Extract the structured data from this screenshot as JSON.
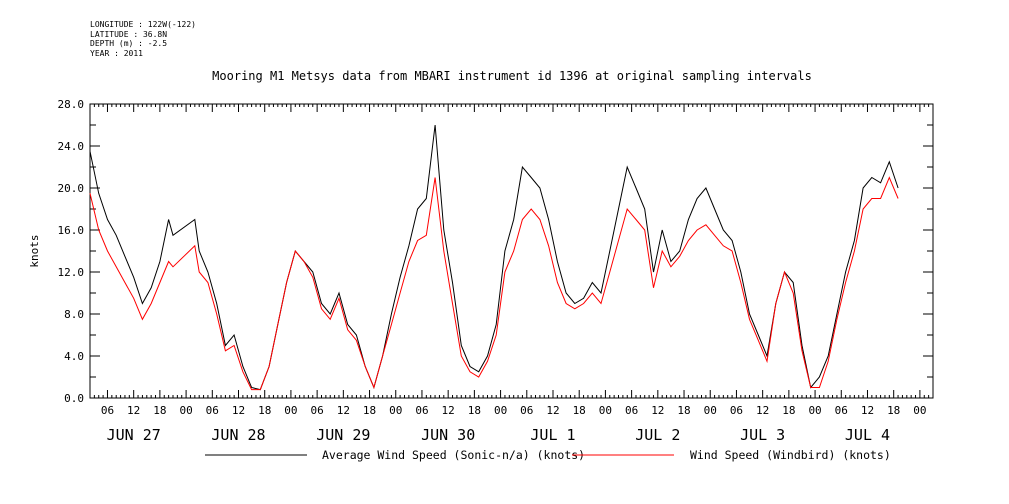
{
  "header": {
    "longitude": "LONGITUDE : 122W(-122)",
    "latitude": "LATITUDE : 36.8N",
    "depth": "DEPTH (m) : -2.5",
    "year": "YEAR : 2011"
  },
  "chart_data": {
    "type": "line",
    "title": "Mooring M1 Metsys data from MBARI instrument id 1396 at original sampling intervals",
    "ylabel": "knots",
    "xlabel": "",
    "ylim": [
      0,
      28
    ],
    "y_ticks": [
      "0.0",
      "4.0",
      "8.0",
      "12.0",
      "16.0",
      "20.0",
      "24.0",
      "28.0"
    ],
    "x_unit": "hours since 2011-06-27 00:00",
    "xlim": [
      2,
      195
    ],
    "x_hour_ticks": [
      "06",
      "12",
      "18",
      "00",
      "06",
      "12",
      "18",
      "00",
      "06",
      "12",
      "18",
      "00",
      "06",
      "12",
      "18",
      "00",
      "06",
      "12",
      "18",
      "00",
      "06",
      "12",
      "18",
      "00",
      "06",
      "12",
      "18",
      "00",
      "06",
      "12",
      "18",
      "00"
    ],
    "x_day_labels": [
      "JUN 27",
      "JUN 28",
      "JUN 29",
      "JUN 30",
      "JUL 1",
      "JUL 2",
      "JUL 3",
      "JUL 4"
    ],
    "grid": false,
    "legend_position": "bottom",
    "series": [
      {
        "name": "Average Wind Speed (Sonic-n/a) (knots)",
        "color": "#000000",
        "points": [
          [
            2,
            23.5
          ],
          [
            4,
            19.5
          ],
          [
            6,
            17
          ],
          [
            8,
            15.5
          ],
          [
            10,
            13.5
          ],
          [
            12,
            11.5
          ],
          [
            14,
            9
          ],
          [
            16,
            10.5
          ],
          [
            18,
            13
          ],
          [
            20,
            17
          ],
          [
            21,
            15.5
          ],
          [
            26,
            17
          ],
          [
            27,
            14
          ],
          [
            29,
            12
          ],
          [
            31,
            9
          ],
          [
            33,
            5
          ],
          [
            35,
            6
          ],
          [
            37,
            3
          ],
          [
            39,
            1
          ],
          [
            41,
            0.8
          ],
          [
            43,
            3
          ],
          [
            45,
            7
          ],
          [
            47,
            11
          ],
          [
            49,
            14
          ],
          [
            51,
            13
          ],
          [
            53,
            12
          ],
          [
            55,
            9
          ],
          [
            57,
            8
          ],
          [
            59,
            10
          ],
          [
            61,
            7
          ],
          [
            63,
            6
          ],
          [
            65,
            3
          ],
          [
            67,
            1
          ],
          [
            69,
            4
          ],
          [
            71,
            8
          ],
          [
            73,
            11.5
          ],
          [
            75,
            14.5
          ],
          [
            77,
            18
          ],
          [
            79,
            19
          ],
          [
            81,
            26
          ],
          [
            83,
            16
          ],
          [
            85,
            11
          ],
          [
            87,
            5
          ],
          [
            89,
            3
          ],
          [
            91,
            2.5
          ],
          [
            93,
            4
          ],
          [
            95,
            7
          ],
          [
            97,
            14
          ],
          [
            99,
            17
          ],
          [
            101,
            22
          ],
          [
            103,
            21
          ],
          [
            105,
            20
          ],
          [
            107,
            17
          ],
          [
            109,
            13
          ],
          [
            111,
            10
          ],
          [
            113,
            9
          ],
          [
            115,
            9.5
          ],
          [
            117,
            11
          ],
          [
            119,
            10
          ],
          [
            121,
            14
          ],
          [
            123,
            18
          ],
          [
            125,
            22
          ],
          [
            127,
            20
          ],
          [
            129,
            18
          ],
          [
            131,
            12
          ],
          [
            133,
            16
          ],
          [
            135,
            13
          ],
          [
            137,
            14
          ],
          [
            139,
            17
          ],
          [
            141,
            19
          ],
          [
            143,
            20
          ],
          [
            145,
            18
          ],
          [
            147,
            16
          ],
          [
            149,
            15
          ],
          [
            151,
            12
          ],
          [
            153,
            8
          ],
          [
            155,
            6
          ],
          [
            157,
            4
          ],
          [
            159,
            9
          ],
          [
            161,
            12
          ],
          [
            163,
            11
          ],
          [
            165,
            5
          ],
          [
            167,
            1
          ],
          [
            169,
            2
          ],
          [
            171,
            4
          ],
          [
            173,
            8
          ],
          [
            175,
            12
          ],
          [
            177,
            15
          ],
          [
            179,
            20
          ],
          [
            181,
            21
          ],
          [
            183,
            20.5
          ],
          [
            185,
            22.5
          ],
          [
            187,
            20
          ]
        ]
      },
      {
        "name": "Wind Speed (Windbird) (knots)",
        "color": "#ff0000",
        "points": [
          [
            2,
            19.5
          ],
          [
            4,
            16
          ],
          [
            6,
            14
          ],
          [
            8,
            12.5
          ],
          [
            10,
            11
          ],
          [
            12,
            9.5
          ],
          [
            14,
            7.5
          ],
          [
            16,
            9
          ],
          [
            18,
            11
          ],
          [
            20,
            13
          ],
          [
            21,
            12.5
          ],
          [
            26,
            14.5
          ],
          [
            27,
            12
          ],
          [
            29,
            11
          ],
          [
            31,
            8
          ],
          [
            33,
            4.5
          ],
          [
            35,
            5
          ],
          [
            37,
            2.5
          ],
          [
            39,
            0.8
          ],
          [
            41,
            0.8
          ],
          [
            43,
            3
          ],
          [
            45,
            7
          ],
          [
            47,
            11
          ],
          [
            49,
            14
          ],
          [
            51,
            13
          ],
          [
            53,
            11.5
          ],
          [
            55,
            8.5
          ],
          [
            57,
            7.5
          ],
          [
            59,
            9.5
          ],
          [
            61,
            6.5
          ],
          [
            63,
            5.5
          ],
          [
            65,
            3
          ],
          [
            67,
            1
          ],
          [
            69,
            4
          ],
          [
            71,
            7
          ],
          [
            73,
            10
          ],
          [
            75,
            13
          ],
          [
            77,
            15
          ],
          [
            79,
            15.5
          ],
          [
            81,
            21
          ],
          [
            83,
            14
          ],
          [
            85,
            9
          ],
          [
            87,
            4
          ],
          [
            89,
            2.5
          ],
          [
            91,
            2
          ],
          [
            93,
            3.5
          ],
          [
            95,
            6
          ],
          [
            97,
            12
          ],
          [
            99,
            14
          ],
          [
            101,
            17
          ],
          [
            103,
            18
          ],
          [
            105,
            17
          ],
          [
            107,
            14.5
          ],
          [
            109,
            11
          ],
          [
            111,
            9
          ],
          [
            113,
            8.5
          ],
          [
            115,
            9
          ],
          [
            117,
            10
          ],
          [
            119,
            9
          ],
          [
            121,
            12
          ],
          [
            123,
            15
          ],
          [
            125,
            18
          ],
          [
            127,
            17
          ],
          [
            129,
            16
          ],
          [
            131,
            10.5
          ],
          [
            133,
            14
          ],
          [
            135,
            12.5
          ],
          [
            137,
            13.5
          ],
          [
            139,
            15
          ],
          [
            141,
            16
          ],
          [
            143,
            16.5
          ],
          [
            145,
            15.5
          ],
          [
            147,
            14.5
          ],
          [
            149,
            14
          ],
          [
            151,
            11
          ],
          [
            153,
            7.5
          ],
          [
            155,
            5.5
          ],
          [
            157,
            3.5
          ],
          [
            159,
            9
          ],
          [
            161,
            12
          ],
          [
            163,
            10
          ],
          [
            165,
            4.5
          ],
          [
            167,
            1
          ],
          [
            169,
            1
          ],
          [
            171,
            3.5
          ],
          [
            173,
            7.5
          ],
          [
            175,
            11
          ],
          [
            177,
            14
          ],
          [
            179,
            18
          ],
          [
            181,
            19
          ],
          [
            183,
            19
          ],
          [
            185,
            21
          ],
          [
            187,
            19
          ]
        ]
      }
    ]
  }
}
